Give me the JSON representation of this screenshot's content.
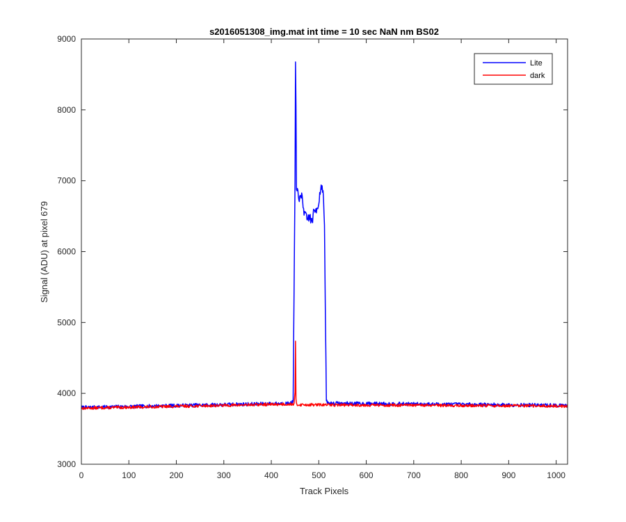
{
  "chart_data": {
    "type": "line",
    "title": "s2016051308_img.mat int time = 10 sec  NaN nm BS02",
    "xlabel": "Track Pixels",
    "ylabel": "Signal (ADU) at pixel 679",
    "xlim": [
      0,
      1024
    ],
    "ylim": [
      3000,
      9000
    ],
    "xticks": [
      0,
      100,
      200,
      300,
      400,
      500,
      600,
      700,
      800,
      900,
      1000
    ],
    "yticks": [
      3000,
      4000,
      5000,
      6000,
      7000,
      8000,
      9000
    ],
    "grid": false,
    "legend_position": "top-right",
    "series": [
      {
        "name": "Lite",
        "color": "#0000ff",
        "baseline": 3850,
        "noise": 25,
        "seed": 7,
        "features": [
          [
            0,
            3800
          ],
          [
            440,
            3860
          ],
          [
            446,
            3880
          ],
          [
            448,
            5500
          ],
          [
            450,
            7000
          ],
          [
            451,
            8650
          ],
          [
            452,
            8000
          ],
          [
            453,
            6800
          ],
          [
            456,
            6880
          ],
          [
            460,
            6720
          ],
          [
            465,
            6780
          ],
          [
            470,
            6520
          ],
          [
            475,
            6450
          ],
          [
            480,
            6500
          ],
          [
            485,
            6420
          ],
          [
            490,
            6550
          ],
          [
            495,
            6600
          ],
          [
            500,
            6700
          ],
          [
            503,
            6850
          ],
          [
            506,
            6950
          ],
          [
            508,
            6900
          ],
          [
            510,
            6700
          ],
          [
            512,
            6400
          ],
          [
            514,
            5000
          ],
          [
            516,
            3900
          ],
          [
            520,
            3860
          ],
          [
            1024,
            3830
          ]
        ]
      },
      {
        "name": "dark",
        "color": "#ff0000",
        "baseline": 3845,
        "noise": 20,
        "seed": 13,
        "features": [
          [
            0,
            3790
          ],
          [
            448,
            3850
          ],
          [
            450,
            4000
          ],
          [
            451,
            4720
          ],
          [
            452,
            3900
          ],
          [
            454,
            3840
          ],
          [
            1024,
            3820
          ]
        ]
      }
    ]
  }
}
